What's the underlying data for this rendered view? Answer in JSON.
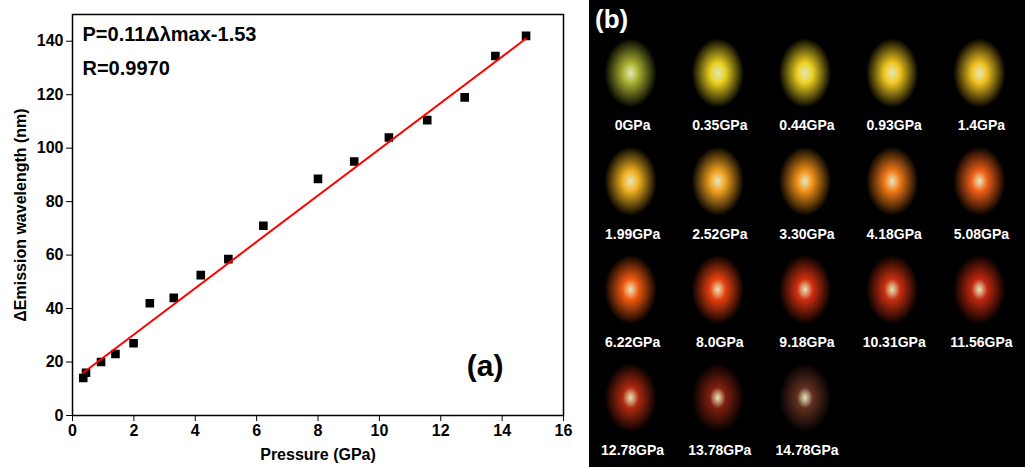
{
  "chart_data": {
    "type": "scatter",
    "x_label": "Pressure (GPa)",
    "y_label": "ΔEmission wavelength (nm)",
    "annotations": [
      "P=0.11Δλmax-1.53",
      "R=0.9970"
    ],
    "panel_label": "(a)",
    "xlim": [
      0,
      16
    ],
    "xticks": [
      0,
      2,
      4,
      6,
      8,
      10,
      12,
      14,
      16
    ],
    "ylim": [
      0,
      150
    ],
    "yticks": [
      0,
      20,
      40,
      60,
      80,
      100,
      120,
      140
    ],
    "grid": false,
    "series": [
      {
        "type": "scatter",
        "color": "#000000",
        "marker": "square",
        "x": [
          0.35,
          0.44,
          0.93,
          1.4,
          1.99,
          2.52,
          3.3,
          4.18,
          5.08,
          6.22,
          8.0,
          9.18,
          10.31,
          11.56,
          12.78,
          13.78,
          14.78
        ],
        "values": [
          14,
          16,
          20,
          23,
          27,
          42,
          44,
          52.5,
          58.5,
          71,
          88.5,
          95,
          104,
          110.5,
          119,
          134.5,
          142
        ]
      },
      {
        "type": "line",
        "color": "#ff0000",
        "line_style": "solid",
        "x": [
          0.35,
          14.78
        ],
        "values": [
          16,
          141
        ]
      }
    ]
  },
  "image_grid": {
    "panel_label": "(b)",
    "cells": [
      {
        "label": "0GPa",
        "color": "#a8b030"
      },
      {
        "label": "0.35GPa",
        "color": "#e8d020"
      },
      {
        "label": "0.44GPa",
        "color": "#ecd020"
      },
      {
        "label": "0.93GPa",
        "color": "#f0c820"
      },
      {
        "label": "1.4GPa",
        "color": "#f0c020"
      },
      {
        "label": "1.99GPa",
        "color": "#f0b020"
      },
      {
        "label": "2.52GPa",
        "color": "#f0a020"
      },
      {
        "label": "3.30GPa",
        "color": "#f09018"
      },
      {
        "label": "4.18GPa",
        "color": "#f07a18"
      },
      {
        "label": "5.08GPa",
        "color": "#f06018"
      },
      {
        "label": "6.22GPa",
        "color": "#f05a10"
      },
      {
        "label": "8.0GPa",
        "color": "#e84010"
      },
      {
        "label": "9.18GPa",
        "color": "#d03010"
      },
      {
        "label": "10.31GPa",
        "color": "#c83010"
      },
      {
        "label": "11.56GPa",
        "color": "#c02810"
      },
      {
        "label": "12.78GPa",
        "color": "#b02a10"
      },
      {
        "label": "13.78GPa",
        "color": "#802010"
      },
      {
        "label": "14.78GPa",
        "color": "#603020"
      }
    ]
  }
}
